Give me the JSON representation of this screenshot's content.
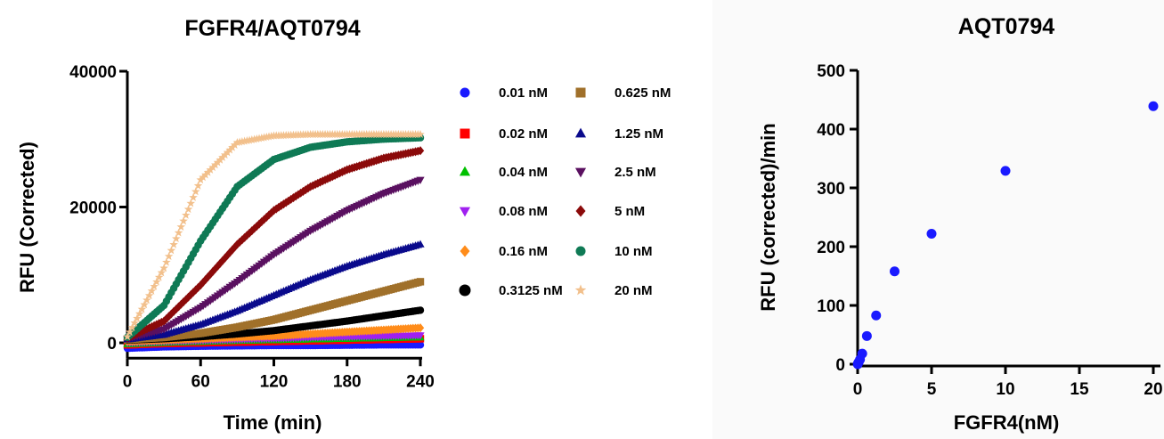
{
  "chart_data": [
    {
      "type": "scatter",
      "title": "FGFR4/AQT0794",
      "xlabel": "Time (min)",
      "ylabel": "RFU (Corrected)",
      "xlim": [
        0,
        240
      ],
      "ylim": [
        -2000,
        40000
      ],
      "x_ticks": [
        "0",
        "60",
        "120",
        "180",
        "240"
      ],
      "y_ticks": [
        "0",
        "20000",
        "40000"
      ],
      "x_tick_values": [
        0,
        60,
        120,
        180,
        240
      ],
      "y_tick_values": [
        0,
        20000,
        40000
      ],
      "x": [
        0,
        30,
        60,
        90,
        120,
        150,
        180,
        210,
        240
      ],
      "legend_placement": "right",
      "grid": false,
      "series": [
        {
          "name": "0.01 nM",
          "color": "#1a1aff",
          "marker": "circle",
          "values": [
            -800,
            -600,
            -500,
            -450,
            -400,
            -400,
            -350,
            -300,
            -300
          ]
        },
        {
          "name": "0.02 nM",
          "color": "#ff0000",
          "marker": "square",
          "values": [
            -300,
            -100,
            0,
            100,
            200,
            300,
            400,
            500,
            600
          ]
        },
        {
          "name": "0.04 nM",
          "color": "#00c000",
          "marker": "triangle-up",
          "values": [
            -200,
            0,
            150,
            300,
            400,
            500,
            600,
            700,
            800
          ]
        },
        {
          "name": "0.08 nM",
          "color": "#a020f0",
          "marker": "triangle-down",
          "values": [
            0,
            200,
            350,
            500,
            650,
            800,
            900,
            1000,
            1100
          ]
        },
        {
          "name": "0.16 nM",
          "color": "#ff8c1a",
          "marker": "diamond",
          "values": [
            200,
            400,
            600,
            800,
            1000,
            1300,
            1600,
            1900,
            2200
          ]
        },
        {
          "name": "0.3125 nM",
          "color": "#000000",
          "marker": "circle",
          "values": [
            400,
            600,
            900,
            1300,
            1800,
            2500,
            3200,
            4000,
            4800
          ]
        },
        {
          "name": "0.625 nM",
          "color": "#a0702a",
          "marker": "square",
          "values": [
            500,
            800,
            1400,
            2300,
            3400,
            4800,
            6200,
            7600,
            9000
          ]
        },
        {
          "name": "1.25 nM",
          "color": "#0a0a8c",
          "marker": "triangle-up",
          "values": [
            500,
            1200,
            2700,
            4700,
            7000,
            9300,
            11300,
            13000,
            14500
          ]
        },
        {
          "name": "2.5 nM",
          "color": "#5a1060",
          "marker": "triangle-down",
          "values": [
            600,
            2000,
            5200,
            9000,
            13000,
            16500,
            19500,
            22000,
            24000
          ]
        },
        {
          "name": "5 nM",
          "color": "#8b0a0a",
          "marker": "diamond",
          "values": [
            700,
            3200,
            8500,
            14500,
            19500,
            23000,
            25500,
            27200,
            28300
          ]
        },
        {
          "name": "10 nM",
          "color": "#0f7a55",
          "marker": "circle",
          "values": [
            800,
            5500,
            15000,
            23000,
            27000,
            28800,
            29600,
            30000,
            30200
          ]
        },
        {
          "name": "20 nM",
          "color": "#f2c08c",
          "marker": "star",
          "values": [
            900,
            11000,
            24000,
            29500,
            30500,
            30700,
            30700,
            30700,
            30700
          ]
        }
      ]
    },
    {
      "type": "scatter",
      "title": "AQT0794",
      "xlabel": "FGFR4(nM)",
      "ylabel": "RFU (corrected)/min",
      "xlim": [
        0,
        20
      ],
      "ylim": [
        0,
        500
      ],
      "x_ticks": [
        "0",
        "5",
        "10",
        "15",
        "20"
      ],
      "y_ticks": [
        "0",
        "100",
        "200",
        "300",
        "400",
        "500"
      ],
      "x_tick_values": [
        0,
        5,
        10,
        15,
        20
      ],
      "y_tick_values": [
        0,
        100,
        200,
        300,
        400,
        500
      ],
      "grid": false,
      "series": [
        {
          "color": "#1a1aff",
          "marker": "circle",
          "x": [
            0.01,
            0.02,
            0.04,
            0.08,
            0.16,
            0.3125,
            0.625,
            1.25,
            2.5,
            5,
            10,
            20
          ],
          "values": [
            0,
            1,
            2,
            4,
            8,
            18,
            48,
            83,
            158,
            222,
            329,
            439
          ]
        }
      ]
    }
  ]
}
